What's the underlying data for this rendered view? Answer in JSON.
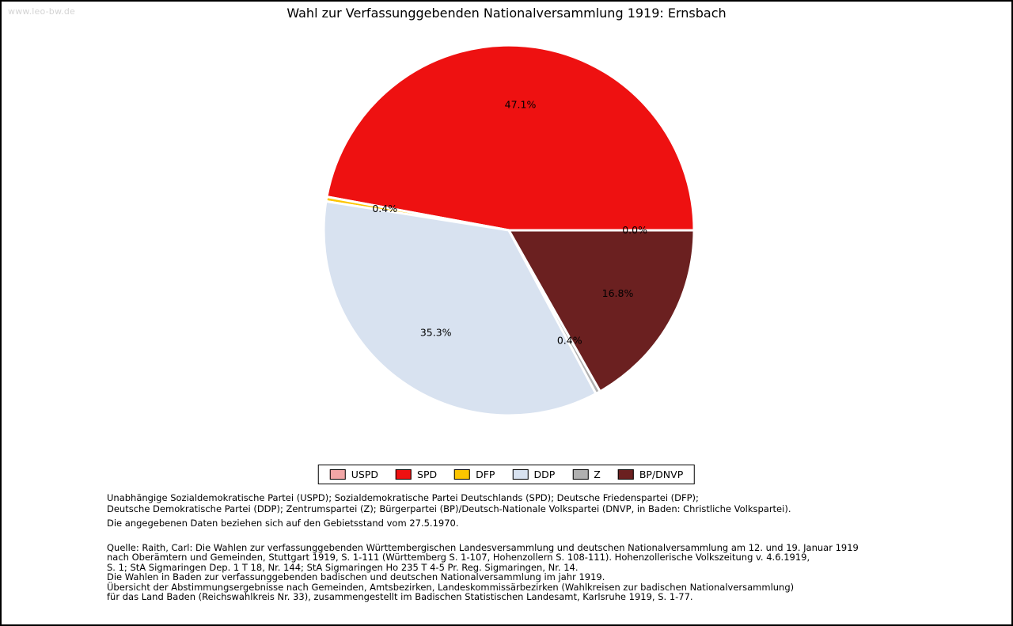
{
  "watermark": "www.leo-bw.de",
  "title": "Wahl zur Verfassunggebenden Nationalversammlung 1919: Ernsbach",
  "chart_data": {
    "type": "pie",
    "title": "Wahl zur Verfassunggebenden Nationalversammlung 1919: Ernsbach",
    "unit": "%",
    "start_angle_deg": 0,
    "direction": "counterclockwise",
    "legend_position": "bottom",
    "slices": [
      {
        "label": "USPD",
        "value": 0.0,
        "display": "0.0%",
        "color": "#f2a6a6"
      },
      {
        "label": "SPD",
        "value": 47.1,
        "display": "47.1%",
        "color": "#ee1111"
      },
      {
        "label": "DFP",
        "value": 0.4,
        "display": "0.4%",
        "color": "#fdc500"
      },
      {
        "label": "DDP",
        "value": 35.3,
        "display": "35.3%",
        "color": "#d8e2f0"
      },
      {
        "label": "Z",
        "value": 0.4,
        "display": "0.4%",
        "color": "#b0b0b0"
      },
      {
        "label": "BP/DNVP",
        "value": 16.8,
        "display": "16.8%",
        "color": "#6b2020"
      }
    ]
  },
  "footnotes": {
    "parties": [
      "Unabhängige Sozialdemokratische Partei (USPD); Sozialdemokratische Partei Deutschlands (SPD); Deutsche Friedenspartei (DFP);",
      "Deutsche Demokratische Partei (DDP); Zentrumspartei (Z); Bürgerpartei (BP)/Deutsch-Nationale Volkspartei (DNVP, in Baden: Christliche Volkspartei)."
    ],
    "gebietsstand": "Die angegebenen Daten beziehen sich auf den Gebietsstand vom 27.5.1970.",
    "quelle": [
      "Quelle: Raith, Carl: Die Wahlen zur verfassunggebenden Württembergischen Landesversammlung und deutschen Nationalversammlung am 12. und 19. Januar 1919",
      "nach Oberämtern und Gemeinden, Stuttgart 1919, S. 1-111 (Württemberg S. 1-107, Hohenzollern S. 108-111). Hohenzollerische Volkszeitung v. 4.6.1919,",
      "S. 1; StA Sigmaringen Dep. 1 T 18, Nr. 144; StA Sigmaringen Ho 235 T 4-5 Pr. Reg. Sigmaringen, Nr. 14.",
      "Die Wahlen in Baden zur verfassunggebenden badischen und deutschen Nationalversammlung im jahr 1919.",
      "Übersicht der Abstimmungsergebnisse nach Gemeinden, Amtsbezirken, Landeskommissärbezirken (Wahlkreisen zur badischen Nationalversammlung)",
      "für das Land Baden (Reichswahlkreis Nr. 33), zusammengestellt im Badischen Statistischen Landesamt, Karlsruhe 1919, S. 1-77."
    ]
  }
}
